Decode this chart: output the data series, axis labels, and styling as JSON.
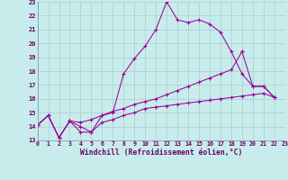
{
  "bg_color": "#c8ecec",
  "grid_color": "#aacccc",
  "line_color": "#990099",
  "xlim": [
    0,
    23
  ],
  "ylim": [
    13,
    23
  ],
  "xticks": [
    0,
    1,
    2,
    3,
    4,
    5,
    6,
    7,
    8,
    9,
    10,
    11,
    12,
    13,
    14,
    15,
    16,
    17,
    18,
    19,
    20,
    21,
    22,
    23
  ],
  "yticks": [
    13,
    14,
    15,
    16,
    17,
    18,
    19,
    20,
    21,
    22,
    23
  ],
  "xlabel": "Windchill (Refroidissement éolien,°C)",
  "line1_x": [
    0,
    1,
    2,
    3,
    4,
    5,
    6,
    7,
    8,
    9,
    10,
    11,
    12,
    13,
    14,
    15,
    16,
    17,
    18,
    19,
    20,
    21,
    22
  ],
  "line1_y": [
    14.1,
    14.8,
    13.2,
    14.4,
    14.0,
    13.6,
    14.8,
    15.0,
    17.8,
    18.9,
    19.8,
    21.0,
    23.0,
    21.7,
    21.5,
    21.7,
    21.4,
    20.8,
    19.4,
    17.8,
    16.9,
    16.9,
    16.1
  ],
  "line2_x": [
    0,
    1,
    2,
    3,
    4,
    5,
    6,
    7,
    8,
    9,
    10,
    11,
    12,
    13,
    14,
    15,
    16,
    17,
    18,
    19,
    20,
    21,
    22
  ],
  "line2_y": [
    14.1,
    14.8,
    13.2,
    14.4,
    13.6,
    13.6,
    14.3,
    14.5,
    14.8,
    15.0,
    15.3,
    15.4,
    15.5,
    15.6,
    15.7,
    15.8,
    15.9,
    16.0,
    16.1,
    16.2,
    16.3,
    16.4,
    16.1
  ],
  "line3_x": [
    0,
    1,
    2,
    3,
    4,
    5,
    6,
    7,
    8,
    9,
    10,
    11,
    12,
    13,
    14,
    15,
    16,
    17,
    18,
    19
  ],
  "line3_y": [
    14.1,
    14.8,
    13.2,
    14.4,
    14.3,
    14.5,
    14.8,
    15.1,
    15.3,
    15.6,
    15.8,
    16.0,
    16.3,
    16.6,
    16.9,
    17.2,
    17.5,
    17.8,
    18.1,
    19.4
  ],
  "line4_x": [
    19,
    20,
    21,
    22
  ],
  "line4_y": [
    19.4,
    16.9,
    16.9,
    16.1
  ],
  "marker_x": [
    21
  ],
  "marker_y": [
    16.9
  ]
}
